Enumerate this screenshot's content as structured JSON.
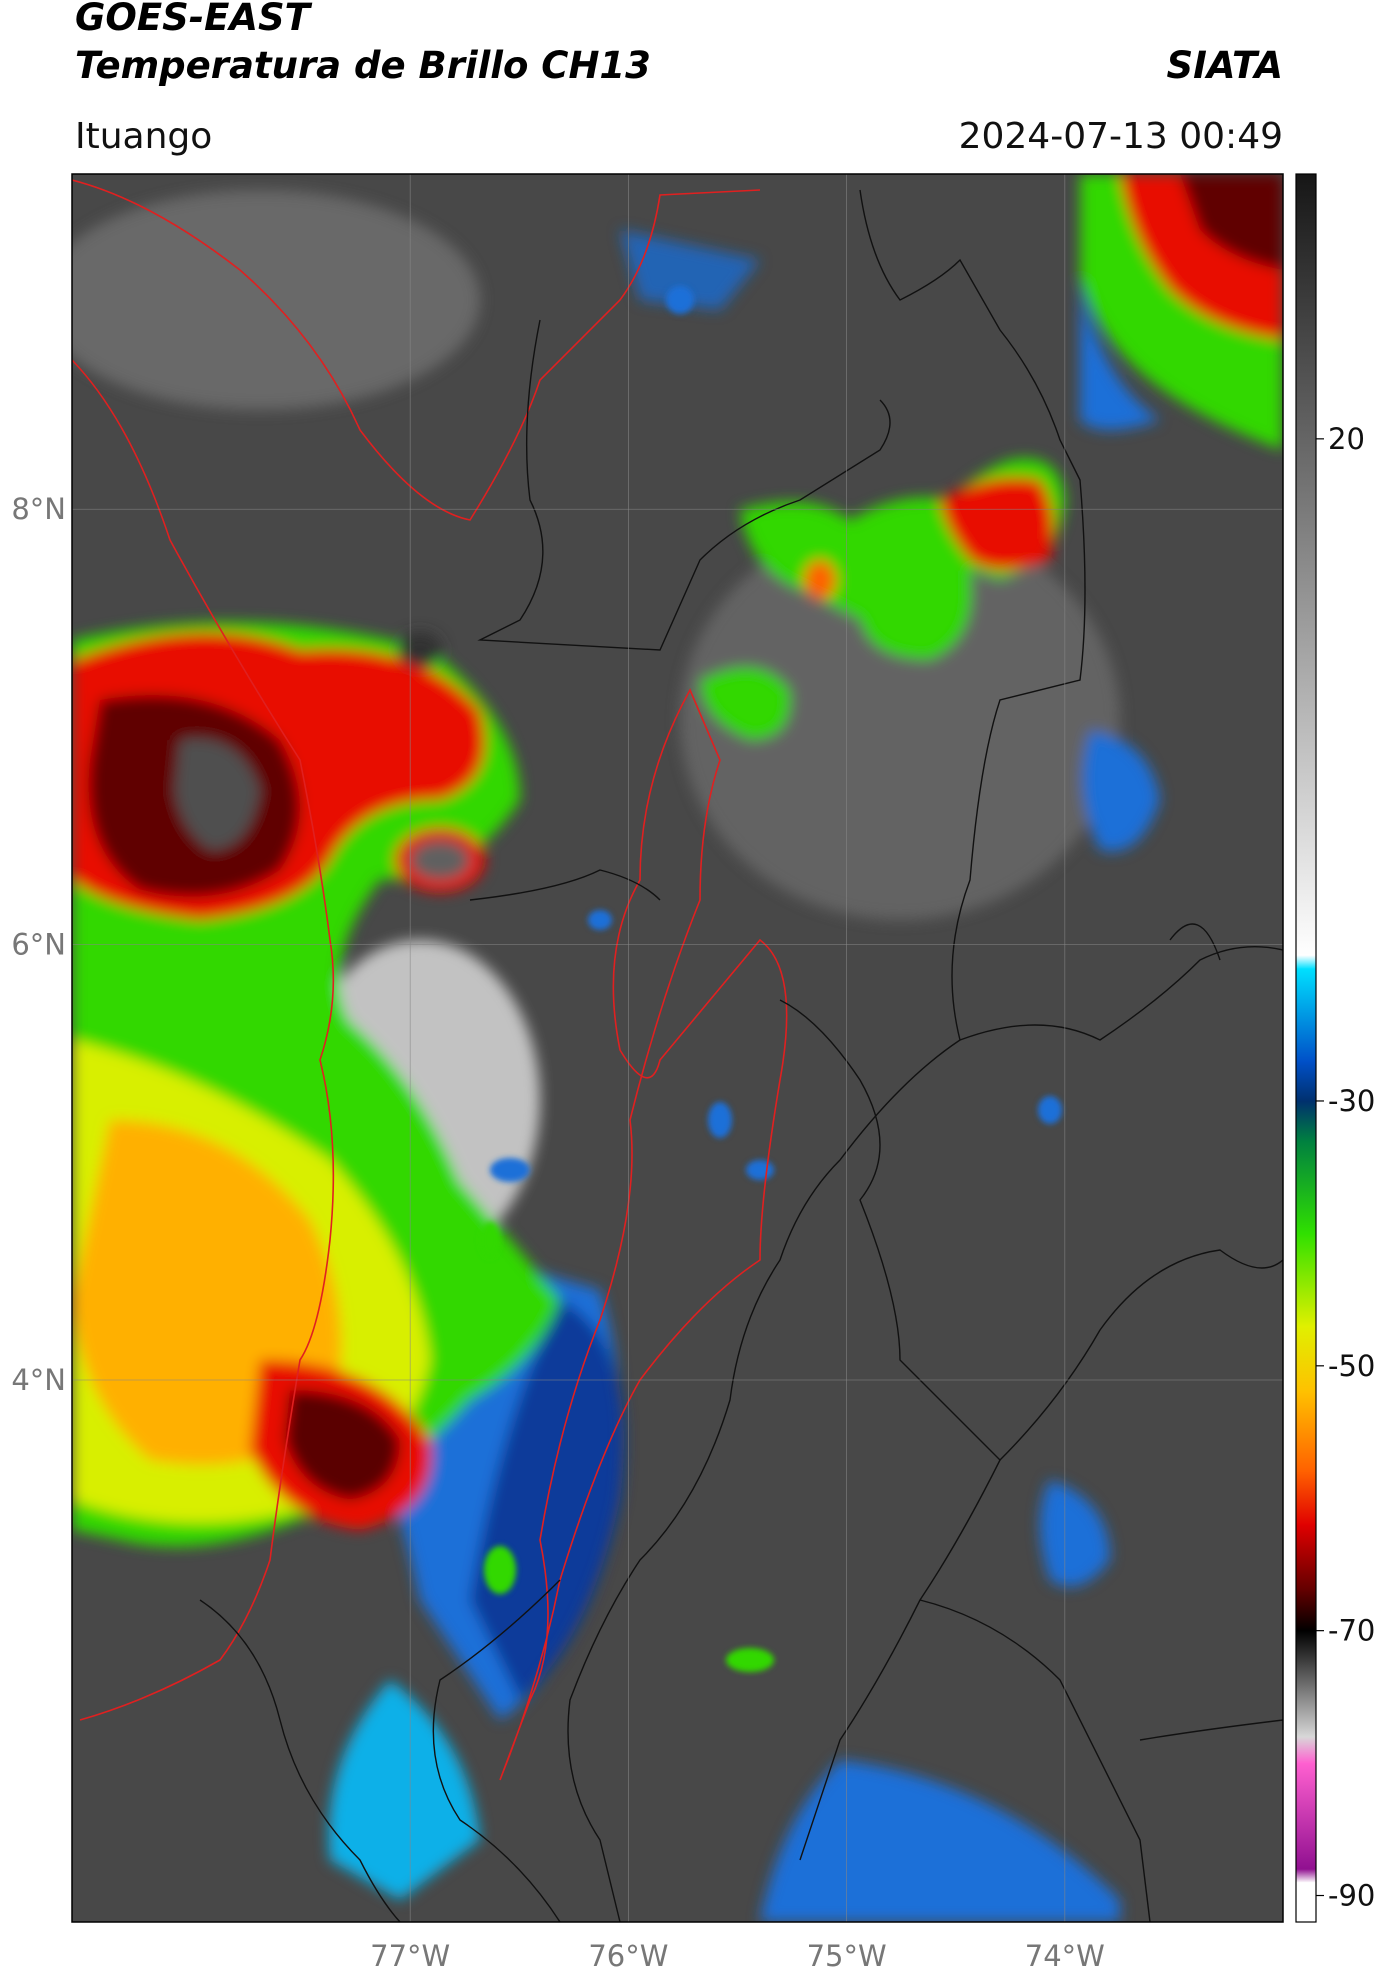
{
  "header": {
    "title": "GOES-EAST",
    "subtitle": "Temperatura de Brillo CH13",
    "source": "SIATA",
    "location": "Ituango",
    "datetime": "2024-07-13 00:49"
  },
  "map": {
    "lonlim": [
      -78.55,
      -73.0
    ],
    "latlim": [
      1.51,
      9.54
    ],
    "lon_ticks": [
      {
        "value": -77,
        "label": "77°W"
      },
      {
        "value": -76,
        "label": "76°W"
      },
      {
        "value": -75,
        "label": "75°W"
      },
      {
        "value": -74,
        "label": "74°W"
      }
    ],
    "lat_ticks": [
      {
        "value": 8,
        "label": "8°N"
      },
      {
        "value": 6,
        "label": "6°N"
      },
      {
        "value": 4,
        "label": "4°N"
      }
    ],
    "grid": true,
    "colorbar": {
      "lim": [
        -92,
        40
      ],
      "ticks": [
        20,
        -30,
        -50,
        -70,
        -90
      ],
      "stops": [
        {
          "value": 40,
          "color": "#161616"
        },
        {
          "value": -19,
          "color": "#ffffff"
        },
        {
          "value": -20,
          "color": "#00e0ff"
        },
        {
          "value": -27,
          "color": "#0050c8"
        },
        {
          "value": -30,
          "color": "#00306e"
        },
        {
          "value": -33,
          "color": "#008040"
        },
        {
          "value": -40,
          "color": "#30e000"
        },
        {
          "value": -47,
          "color": "#e0f000"
        },
        {
          "value": -52,
          "color": "#ffc000"
        },
        {
          "value": -58,
          "color": "#ff6000"
        },
        {
          "value": -62,
          "color": "#e00000"
        },
        {
          "value": -67,
          "color": "#600000"
        },
        {
          "value": -70,
          "color": "#000000"
        },
        {
          "value": -78,
          "color": "#d8d8d8"
        },
        {
          "value": -80,
          "color": "#ff60d0"
        },
        {
          "value": -88,
          "color": "#901090"
        },
        {
          "value": -89,
          "color": "#ffffff"
        },
        {
          "value": -92,
          "color": "#ffffff"
        }
      ]
    }
  }
}
